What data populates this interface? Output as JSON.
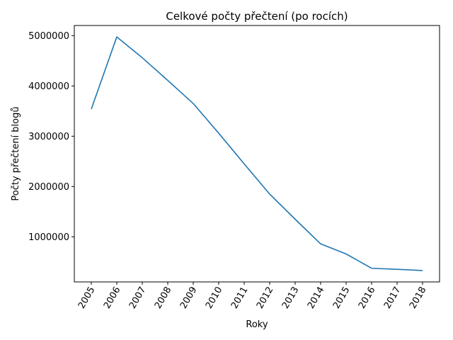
{
  "chart_data": {
    "type": "line",
    "title": "Celkové počty přečtení (po rocích)",
    "xlabel": "Roky",
    "ylabel": "Počty přečtení blogů",
    "categories": [
      "2005",
      "2006",
      "2007",
      "2008",
      "2009",
      "2010",
      "2011",
      "2012",
      "2013",
      "2014",
      "2015",
      "2016",
      "2017",
      "2018"
    ],
    "series": [
      {
        "values": [
          3540000,
          4975000,
          4560000,
          4110000,
          3650000,
          3060000,
          2450000,
          1850000,
          1350000,
          860000,
          660000,
          375000,
          355000,
          330000
        ],
        "color": "#1f77b4"
      }
    ],
    "yticks": [
      1000000,
      2000000,
      3000000,
      4000000,
      5000000
    ],
    "ylim": [
      103750,
      5201250
    ],
    "grid": false,
    "legend": "none"
  }
}
